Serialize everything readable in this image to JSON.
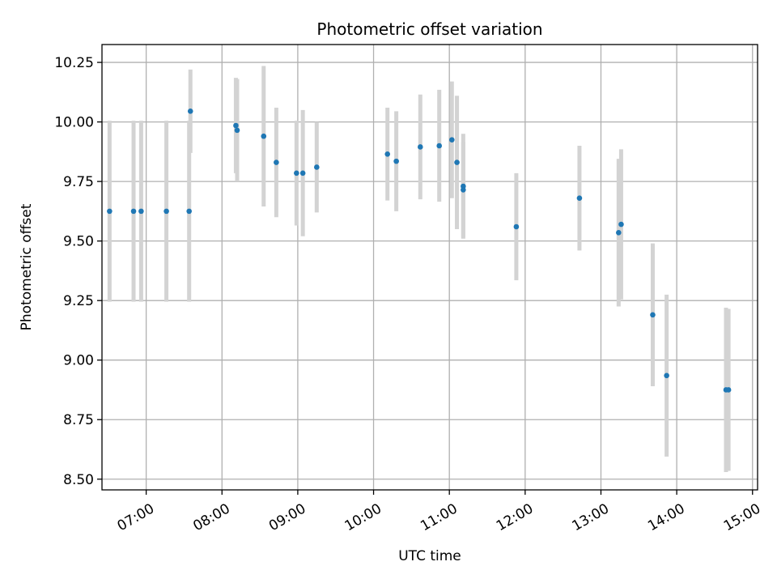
{
  "chart_data": {
    "type": "scatter",
    "title": "Photometric offset variation",
    "xlabel": "UTC time",
    "ylabel": "Photometric offset",
    "x_tick_labels": [
      "07:00",
      "08:00",
      "09:00",
      "10:00",
      "11:00",
      "12:00",
      "13:00",
      "14:00",
      "15:00"
    ],
    "y_tick_labels": [
      "8.50",
      "8.75",
      "9.00",
      "9.25",
      "9.50",
      "9.75",
      "10.00",
      "10.25"
    ],
    "ylim": [
      8.455,
      10.325
    ],
    "xlim": [
      "06:25",
      "15:04"
    ],
    "grid": true,
    "point_color": "#1f77b4",
    "errorbar_color": "#d3d3d3",
    "series": [
      {
        "points": [
          {
            "time": "06:31",
            "y": 9.625,
            "yerr": 0.38
          },
          {
            "time": "06:50",
            "y": 9.625,
            "yerr": 0.38
          },
          {
            "time": "06:56",
            "y": 9.625,
            "yerr": 0.38
          },
          {
            "time": "07:16",
            "y": 9.625,
            "yerr": 0.38
          },
          {
            "time": "07:34",
            "y": 9.625,
            "yerr": 0.38
          },
          {
            "time": "07:35",
            "y": 10.045,
            "yerr": 0.175
          },
          {
            "time": "08:11",
            "y": 9.985,
            "yerr": 0.2
          },
          {
            "time": "08:12",
            "y": 9.965,
            "yerr": 0.215
          },
          {
            "time": "08:33",
            "y": 9.94,
            "yerr": 0.295
          },
          {
            "time": "08:43",
            "y": 9.83,
            "yerr": 0.23
          },
          {
            "time": "08:59",
            "y": 9.785,
            "yerr": 0.22
          },
          {
            "time": "09:04",
            "y": 9.785,
            "yerr": 0.265
          },
          {
            "time": "09:15",
            "y": 9.81,
            "yerr": 0.19
          },
          {
            "time": "10:11",
            "y": 9.865,
            "yerr": 0.195
          },
          {
            "time": "10:18",
            "y": 9.835,
            "yerr": 0.21
          },
          {
            "time": "10:37",
            "y": 9.895,
            "yerr": 0.22
          },
          {
            "time": "10:52",
            "y": 9.9,
            "yerr": 0.235
          },
          {
            "time": "11:02",
            "y": 9.925,
            "yerr": 0.245
          },
          {
            "time": "11:06",
            "y": 9.83,
            "yerr": 0.28
          },
          {
            "time": "11:11",
            "y": 9.73,
            "yerr": 0.22
          },
          {
            "time": "11:11",
            "y": 9.715,
            "yerr": 0.2
          },
          {
            "time": "11:53",
            "y": 9.56,
            "yerr": 0.225
          },
          {
            "time": "12:43",
            "y": 9.68,
            "yerr": 0.22
          },
          {
            "time": "13:14",
            "y": 9.535,
            "yerr": 0.31
          },
          {
            "time": "13:16",
            "y": 9.57,
            "yerr": 0.315
          },
          {
            "time": "13:41",
            "y": 9.19,
            "yerr": 0.3
          },
          {
            "time": "13:52",
            "y": 8.935,
            "yerr": 0.34
          },
          {
            "time": "14:39",
            "y": 8.875,
            "yerr": 0.345
          },
          {
            "time": "14:41",
            "y": 8.875,
            "yerr": 0.34
          }
        ]
      }
    ]
  }
}
